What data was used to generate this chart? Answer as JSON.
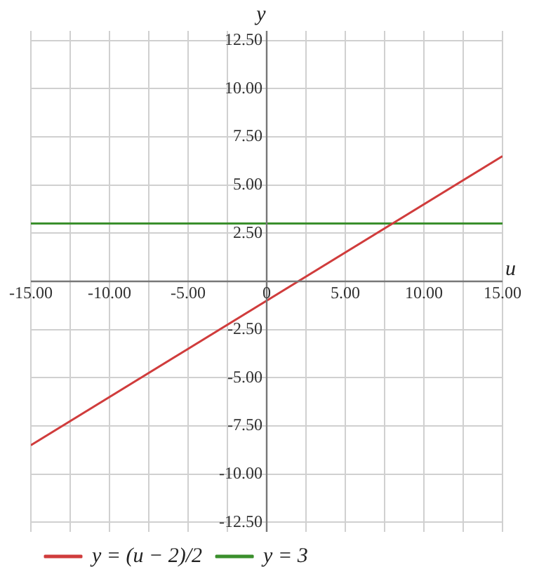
{
  "chart_data": {
    "type": "line",
    "xlabel": "u",
    "ylabel": "y",
    "xlim": [
      -15,
      15
    ],
    "ylim": [
      -13,
      13
    ],
    "xticks": [
      {
        "value": -15,
        "label": "-15.00"
      },
      {
        "value": -12.5,
        "label": null
      },
      {
        "value": -10,
        "label": "-10.00"
      },
      {
        "value": -7.5,
        "label": null
      },
      {
        "value": -5,
        "label": "-5.00"
      },
      {
        "value": -2.5,
        "label": null
      },
      0,
      {
        "value": 2.5,
        "label": null
      },
      {
        "value": 5,
        "label": "5.00"
      },
      {
        "value": 7.5,
        "label": null
      },
      {
        "value": 10,
        "label": "10.00"
      },
      {
        "value": 12.5,
        "label": null
      },
      {
        "value": 15,
        "label": "15.00"
      }
    ],
    "yticks": [
      {
        "value": -12.5,
        "label": "-12.50"
      },
      {
        "value": -10,
        "label": "-10.00"
      },
      {
        "value": -7.5,
        "label": "-7.50"
      },
      {
        "value": -5,
        "label": "-5.00"
      },
      {
        "value": -2.5,
        "label": "-2.50"
      },
      {
        "value": 0,
        "label": null
      },
      {
        "value": 2.5,
        "label": "2.50"
      },
      {
        "value": 5,
        "label": "5.00"
      },
      {
        "value": 7.5,
        "label": "7.50"
      },
      {
        "value": 10,
        "label": "10.00"
      },
      {
        "value": 12.5,
        "label": "12.50"
      }
    ],
    "x": [
      -15,
      15
    ],
    "series": [
      {
        "name": "y = (u − 2)/2",
        "color": "#d03c3c",
        "values": [
          -8.5,
          6.5
        ]
      },
      {
        "name": "y = 3",
        "color": "#3a8f2c",
        "values": [
          3,
          3
        ]
      }
    ],
    "grid": true,
    "legend": "bottom left",
    "marker": "none",
    "line_style": "solid"
  }
}
